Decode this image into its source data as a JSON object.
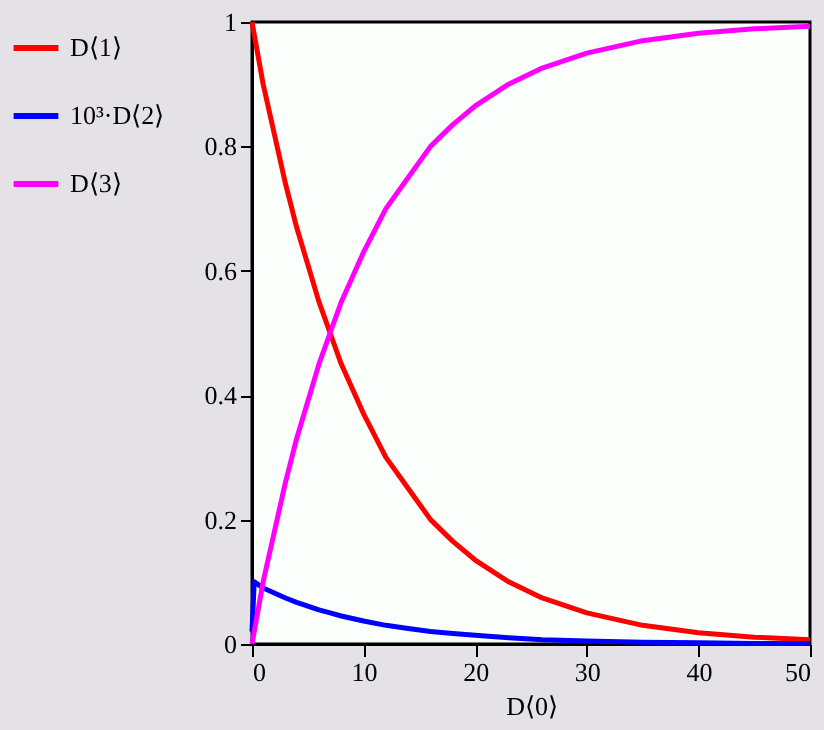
{
  "chart_data": {
    "type": "line",
    "xlabel": "D⟨0⟩",
    "x": [
      0,
      1,
      2,
      3,
      4,
      5,
      6,
      7,
      8,
      10,
      12,
      14,
      16,
      18,
      20,
      23,
      26,
      30,
      35,
      40,
      45,
      50
    ],
    "series": [
      {
        "name": "D⟨1⟩",
        "color": "#ff0000",
        "values": [
          1,
          0.9,
          0.82,
          0.74,
          0.67,
          0.61,
          0.55,
          0.5,
          0.45,
          0.37,
          0.3,
          0.25,
          0.2,
          0.165,
          0.135,
          0.1,
          0.074,
          0.05,
          0.03,
          0.018,
          0.011,
          0.007
        ]
      },
      {
        "name": "10³·D⟨2⟩",
        "color": "#0000ff",
        "x": [
          0,
          0.2,
          1,
          2,
          3,
          4,
          5,
          6,
          7,
          8,
          10,
          12,
          14,
          16,
          18,
          20,
          23,
          26,
          30,
          35,
          40,
          45,
          50
        ],
        "values": [
          0.02,
          0.1,
          0.09,
          0.082,
          0.074,
          0.067,
          0.061,
          0.055,
          0.05,
          0.045,
          0.037,
          0.03,
          0.025,
          0.02,
          0.017,
          0.014,
          0.01,
          0.007,
          0.005,
          0.003,
          0.002,
          0.001,
          0.001
        ]
      },
      {
        "name": "D⟨3⟩",
        "color": "#ff00ff",
        "values": [
          0,
          0.1,
          0.18,
          0.26,
          0.33,
          0.39,
          0.45,
          0.5,
          0.55,
          0.63,
          0.7,
          0.75,
          0.8,
          0.835,
          0.865,
          0.9,
          0.926,
          0.95,
          0.97,
          0.982,
          0.989,
          0.993
        ]
      }
    ],
    "xlim": [
      0,
      50
    ],
    "xticks": [
      0,
      10,
      20,
      30,
      40,
      50
    ],
    "ylim": [
      0,
      1
    ],
    "yticks": [
      0,
      0.2,
      0.4,
      0.6,
      0.8,
      1
    ],
    "grid": false,
    "legend": "left",
    "line_style": "solid"
  }
}
